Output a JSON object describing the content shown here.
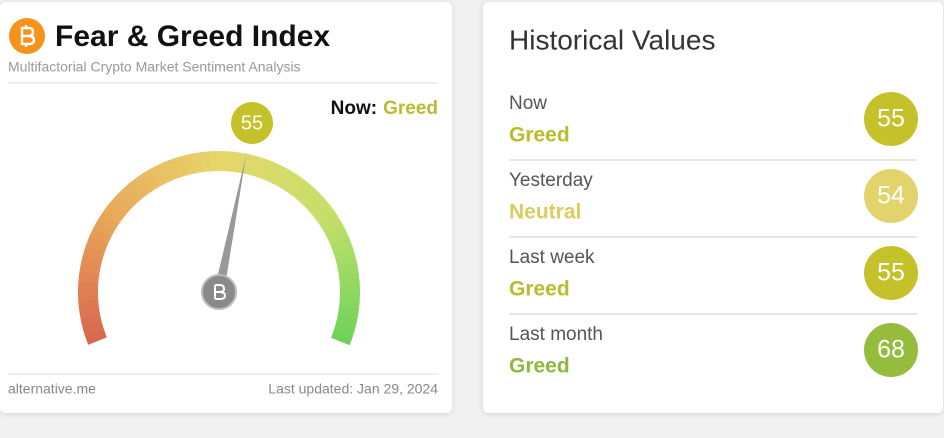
{
  "index_card": {
    "title": "Fear & Greed Index",
    "subtitle": "Multifactorial Crypto Market Sentiment Analysis",
    "now_label": "Now:",
    "now_class": "Greed",
    "now_color": "#b9bd2c",
    "value": 55,
    "source": "alternative.me",
    "updated": "Last updated: Jan 29, 2024"
  },
  "historical": {
    "title": "Historical Values",
    "rows": [
      {
        "period": "Now",
        "class": "Greed",
        "value": 55,
        "color": "#c5c12a",
        "text_color": "#b9bd2c"
      },
      {
        "period": "Yesterday",
        "class": "Neutral",
        "value": 54,
        "color": "#e2d36c",
        "text_color": "#dccb5f"
      },
      {
        "period": "Last week",
        "class": "Greed",
        "value": 55,
        "color": "#c5c12a",
        "text_color": "#b9bd2c"
      },
      {
        "period": "Last month",
        "class": "Greed",
        "value": 68,
        "color": "#96bc3e",
        "text_color": "#8db83a"
      }
    ]
  }
}
